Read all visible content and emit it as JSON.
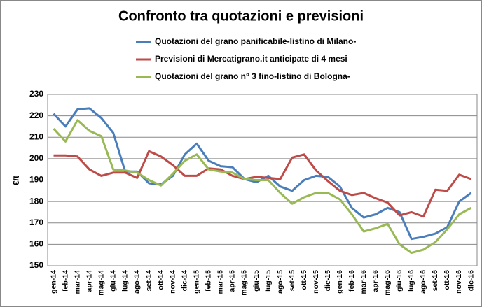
{
  "chart_data": {
    "type": "line",
    "title": "Confronto tra quotazioni e previsioni",
    "y_label": "€/t",
    "categories": [
      "gen-14",
      "feb-14",
      "mar-14",
      "apr-14",
      "mag-14",
      "giu-14",
      "lug-14",
      "ago-14",
      "set-14",
      "ott-14",
      "nov-14",
      "dic-14",
      "gen-15",
      "feb-15",
      "mar-15",
      "apr-15",
      "mag-15",
      "giu-15",
      "lug-15",
      "ago-15",
      "set-15",
      "ott-15",
      "nov-15",
      "dic-15",
      "gen-16",
      "feb-16",
      "mar-16",
      "apr-16",
      "mag-16",
      "giu-16",
      "lug-16",
      "ago-16",
      "set-16",
      "ott-16",
      "nov-16",
      "dic-16"
    ],
    "series": [
      {
        "name": "Quotazioni del grano panificabile-listino di Milano-",
        "color": "#4a7ebb",
        "values": [
          221,
          215,
          223,
          223.5,
          219,
          212,
          194,
          194,
          188.5,
          188,
          192,
          202,
          207,
          199,
          196.5,
          196,
          190.5,
          189,
          192,
          187,
          185,
          190,
          192,
          191.5,
          187,
          177,
          172.5,
          174,
          177,
          175,
          162.5,
          163.5,
          165,
          168,
          180,
          184
        ]
      },
      {
        "name": "Previsioni di Mercatigrano.it anticipate di 4 mesi",
        "color": "#be4b48",
        "values": [
          201.5,
          201.5,
          201,
          195,
          192,
          193.5,
          193.5,
          191,
          203.5,
          201,
          197,
          192,
          192,
          195.5,
          195,
          192,
          190.5,
          191.5,
          191,
          190.5,
          200.5,
          202,
          194.5,
          189.5,
          185,
          183,
          184,
          181.5,
          179.5,
          173.5,
          175,
          173,
          185.5,
          185,
          192.5,
          190.5
        ]
      },
      {
        "name": "Quotazioni del grano n° 3 fino-listino di Bologna-",
        "color": "#98b954",
        "values": [
          214,
          208,
          218,
          213,
          210.5,
          195,
          194.5,
          193.5,
          190,
          187.5,
          193,
          199,
          202,
          195,
          194,
          193.5,
          190.5,
          190,
          190,
          184,
          179,
          182,
          184,
          184,
          181,
          174,
          166,
          167.5,
          169.5,
          160,
          156,
          157.5,
          161,
          167,
          174,
          177
        ]
      }
    ],
    "ylim": [
      150,
      230
    ],
    "yticks": [
      150,
      160,
      170,
      180,
      190,
      200,
      210,
      220,
      230
    ],
    "grid": true
  }
}
